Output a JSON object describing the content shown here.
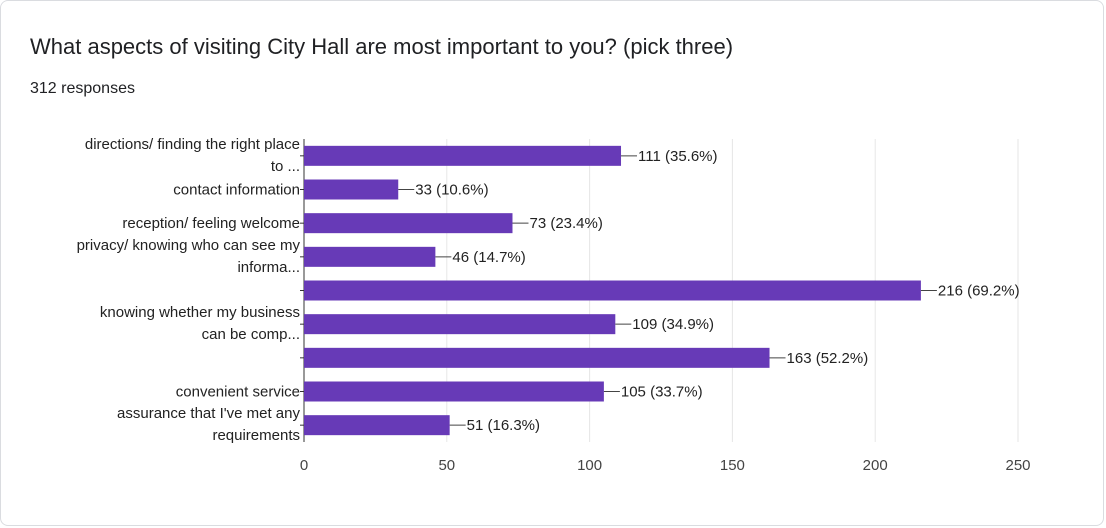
{
  "header": {
    "title": "What aspects of visiting City Hall are most important to you? (pick three)",
    "responses": "312 responses"
  },
  "chart_data": {
    "type": "bar",
    "orientation": "horizontal",
    "categories": [
      [
        "directions/ finding the right place",
        "to ..."
      ],
      [
        "contact information"
      ],
      [
        "reception/ feeling welcome"
      ],
      [
        "privacy/ knowing who can see my",
        "informa..."
      ],
      [],
      [
        "knowing whether my business",
        "can be comp..."
      ],
      [],
      [
        "convenient service"
      ],
      [
        "assurance that I've met any",
        "requirements"
      ]
    ],
    "values": [
      111,
      33,
      73,
      46,
      216,
      109,
      163,
      105,
      51
    ],
    "data_labels": [
      "111 (35.6%)",
      "33 (10.6%)",
      "73 (23.4%)",
      "46 (14.7%)",
      "216 (69.2%)",
      "109 (34.9%)",
      "163 (52.2%)",
      "105 (33.7%)",
      "51 (16.3%)"
    ],
    "xlim": [
      0,
      250
    ],
    "xticks": [
      0,
      50,
      100,
      150,
      200,
      250
    ],
    "grid": true,
    "bar_color": "#673ab7"
  }
}
